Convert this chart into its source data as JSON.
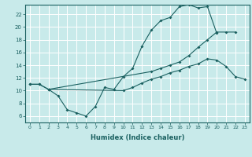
{
  "xlabel": "Humidex (Indice chaleur)",
  "bg_color": "#c8eaea",
  "line_color": "#1a6060",
  "grid_color": "#ffffff",
  "xlim": [
    -0.5,
    23.5
  ],
  "ylim": [
    5.0,
    23.5
  ],
  "yticks": [
    6,
    8,
    10,
    12,
    14,
    16,
    18,
    20,
    22
  ],
  "xticks": [
    0,
    1,
    2,
    3,
    4,
    5,
    6,
    7,
    8,
    9,
    10,
    11,
    12,
    13,
    14,
    15,
    16,
    17,
    18,
    19,
    20,
    21,
    22,
    23
  ],
  "line1_x": [
    0,
    1,
    2,
    3,
    4,
    5,
    6,
    7,
    8,
    9,
    10,
    11,
    12,
    13,
    14,
    15,
    16,
    17,
    18,
    19,
    20
  ],
  "line1_y": [
    11,
    11,
    10.2,
    9.2,
    7.0,
    6.5,
    6.0,
    7.5,
    10.5,
    10.2,
    12.2,
    13.5,
    17.0,
    19.5,
    21.0,
    21.5,
    23.2,
    23.5,
    23.0,
    23.2,
    19.0
  ],
  "line2_x": [
    0,
    1,
    2,
    13,
    14,
    15,
    16,
    17,
    18,
    19,
    20,
    21,
    22
  ],
  "line2_y": [
    11,
    11,
    10.2,
    13.0,
    13.5,
    14.0,
    14.5,
    15.5,
    16.8,
    18.0,
    19.2,
    19.2,
    19.2
  ],
  "line3_x": [
    2,
    10,
    11,
    12,
    13,
    14,
    15,
    16,
    17,
    18,
    19,
    20,
    21,
    22,
    23
  ],
  "line3_y": [
    10.2,
    10.0,
    10.5,
    11.2,
    11.8,
    12.2,
    12.8,
    13.2,
    13.8,
    14.2,
    15.0,
    14.8,
    13.8,
    12.2,
    11.8
  ]
}
